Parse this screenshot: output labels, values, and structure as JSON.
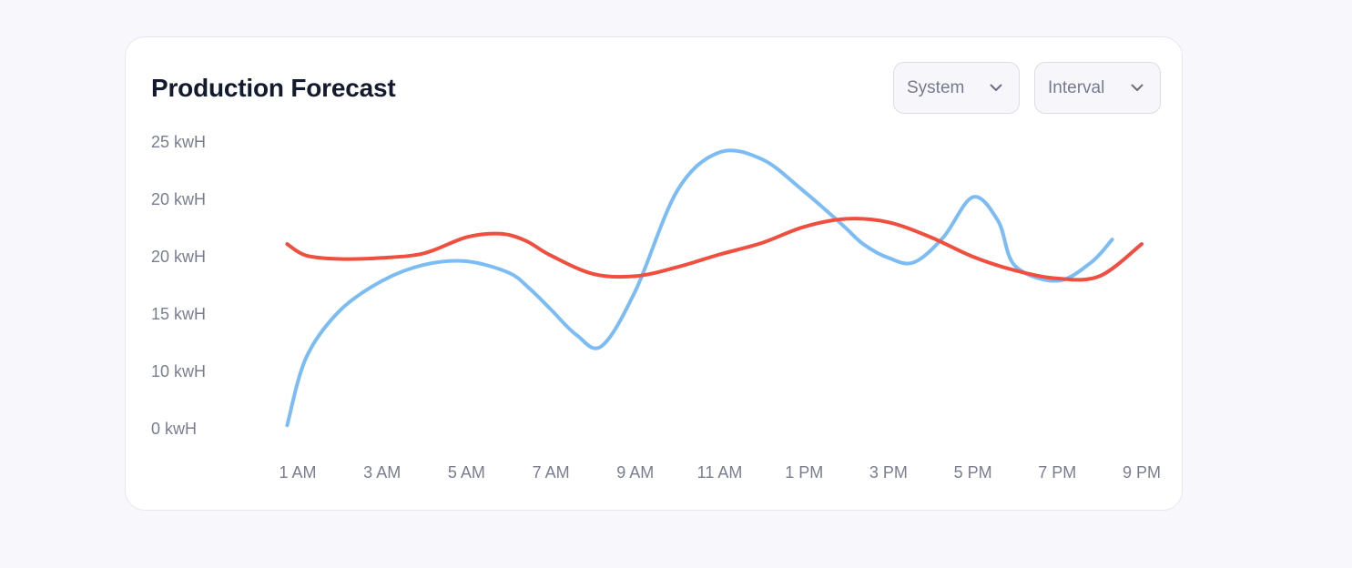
{
  "card": {
    "title": "Production Forecast"
  },
  "filters": {
    "system_label": "System",
    "interval_label": "Interval",
    "chevron_icon": "chevron-down-icon"
  },
  "colors": {
    "series_blue": "#7cbcf4",
    "series_red": "#f04e3e",
    "tick_text": "#7a7d90",
    "title_text": "#141a2e"
  },
  "chart_data": {
    "type": "line",
    "title": "Production Forecast",
    "xlabel": "",
    "ylabel": "",
    "x_tick_labels": [
      "1 AM",
      "3 AM",
      "5 AM",
      "7 AM",
      "9 AM",
      "11 AM",
      "1 PM",
      "3 PM",
      "5 PM",
      "7 PM",
      "9 PM"
    ],
    "y_tick_labels": [
      "25 kwH",
      "20 kwH",
      "20 kwH",
      "15 kwH",
      "10 kwH",
      "0 kwH"
    ],
    "grid": false,
    "legend": "none",
    "series": [
      {
        "color": "#7cbcf4",
        "x": [
          0.75,
          1.2,
          2,
          3,
          4,
          5,
          6,
          6.5,
          7,
          7.6,
          8.2,
          9,
          10,
          11,
          12,
          12.9,
          13.9,
          14.4,
          15,
          15.6,
          16.3,
          17,
          17.6,
          18,
          19,
          19.8,
          20.3
        ],
        "y": [
          0.3,
          6.2,
          10.3,
          12.9,
          14.3,
          14.6,
          13.6,
          12.2,
          10.4,
          8.2,
          7.2,
          12.0,
          20.8,
          24.1,
          23.5,
          21.0,
          17.8,
          16.1,
          14.9,
          14.5,
          16.7,
          20.2,
          18.1,
          14.2,
          12.9,
          14.5,
          16.5
        ]
      },
      {
        "color": "#f04e3e",
        "x": [
          0.75,
          1.2,
          2,
          3,
          4,
          5,
          5.8,
          6.4,
          7,
          8,
          9,
          10,
          11,
          12,
          13,
          14,
          15,
          16,
          17,
          18,
          19,
          20,
          21
        ],
        "y": [
          16.1,
          15.1,
          14.8,
          14.9,
          15.3,
          16.7,
          17.0,
          16.4,
          15.1,
          13.5,
          13.3,
          14.1,
          15.2,
          16.2,
          17.6,
          18.3,
          18.0,
          16.7,
          15.0,
          13.8,
          13.1,
          13.3,
          16.1
        ]
      }
    ]
  }
}
